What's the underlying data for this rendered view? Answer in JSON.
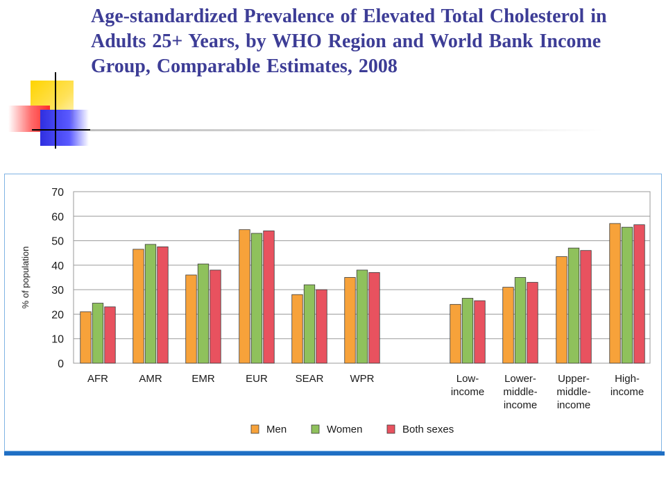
{
  "slide": {
    "title": "Age-standardized Prevalence of Elevated Total Cholesterol in Adults 25+ Years, by WHO Region and World Bank Income Group, Comparable Estimates, 2008"
  },
  "colors": {
    "men": "#f7a23a",
    "women": "#8fc15c",
    "both": "#e8525f",
    "title": "#3d3d96",
    "frame": "#7fb3e3",
    "bottom_bar": "#1f6fc4"
  },
  "chart_data": {
    "type": "bar",
    "title": "",
    "xlabel": "",
    "ylabel": "% of population",
    "ylim": [
      0,
      70
    ],
    "yticks": [
      0,
      10,
      20,
      30,
      40,
      50,
      60,
      70
    ],
    "grid": true,
    "legend_position": "bottom",
    "categories": [
      [
        "AFR"
      ],
      [
        "AMR"
      ],
      [
        "EMR"
      ],
      [
        "EUR"
      ],
      [
        "SEAR"
      ],
      [
        "WPR"
      ],
      [
        "Low-",
        "income"
      ],
      [
        "Lower-",
        "middle-",
        "income"
      ],
      [
        "Upper-",
        "middle-",
        "income"
      ],
      [
        "High-",
        "income"
      ]
    ],
    "series": [
      {
        "name": "Men",
        "color": "#f7a23a",
        "values": [
          21,
          46.5,
          36,
          54.5,
          28,
          35,
          24,
          31,
          43.5,
          57
        ]
      },
      {
        "name": "Women",
        "color": "#8fc15c",
        "values": [
          24.5,
          48.5,
          40.5,
          53,
          32,
          38,
          26.5,
          35,
          47,
          55.5
        ]
      },
      {
        "name": "Both sexes",
        "color": "#e8525f",
        "values": [
          23,
          47.5,
          38,
          54,
          30,
          37,
          25.5,
          33,
          46,
          56.5
        ]
      }
    ]
  }
}
